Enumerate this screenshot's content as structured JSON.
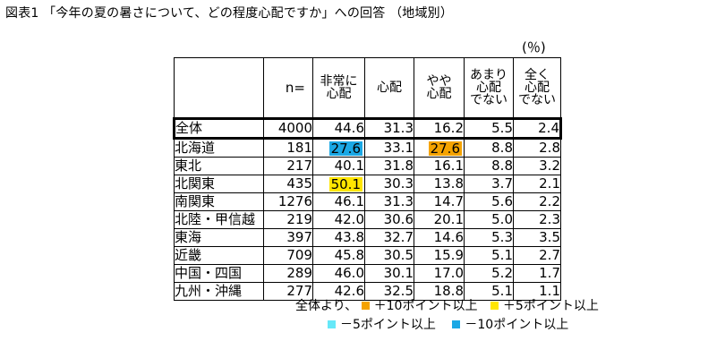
{
  "title": "図表1 「今年の夏の暑さについて、どの程度心配ですか」への回答 （地域別）",
  "unit": "(％)",
  "colors": {
    "plus10": "#F5A300",
    "plus5": "#FFE600",
    "minus5": "#66E8F8",
    "minus10": "#1BA8E5"
  },
  "chart_data": {
    "type": "table",
    "columns": [
      "",
      "n=",
      "非常に心配",
      "心配",
      "やや心配",
      "あまり心配でない",
      "全く心配でない"
    ],
    "column_headers_display": [
      "",
      "n=",
      [
        "非常に",
        "心配"
      ],
      [
        "心配"
      ],
      [
        "やや",
        "心配"
      ],
      [
        "あまり",
        "心配",
        "でない"
      ],
      [
        "全く",
        "心配",
        "でない"
      ]
    ],
    "rows": [
      {
        "region": "全体",
        "n": "4000",
        "values": [
          "44.6",
          "31.3",
          "16.2",
          "5.5",
          "2.4"
        ],
        "highlight": [
          null,
          null,
          null,
          null,
          null
        ]
      },
      {
        "region": "北海道",
        "n": "181",
        "values": [
          "27.6",
          "33.1",
          "27.6",
          "8.8",
          "2.8"
        ],
        "highlight": [
          "minus10",
          null,
          "plus10",
          null,
          null
        ]
      },
      {
        "region": "東北",
        "n": "217",
        "values": [
          "40.1",
          "31.8",
          "16.1",
          "8.8",
          "3.2"
        ],
        "highlight": [
          null,
          null,
          null,
          null,
          null
        ]
      },
      {
        "region": "北関東",
        "n": "435",
        "values": [
          "50.1",
          "30.3",
          "13.8",
          "3.7",
          "2.1"
        ],
        "highlight": [
          "plus5",
          null,
          null,
          null,
          null
        ]
      },
      {
        "region": "南関東",
        "n": "1276",
        "values": [
          "46.1",
          "31.3",
          "14.7",
          "5.6",
          "2.2"
        ],
        "highlight": [
          null,
          null,
          null,
          null,
          null
        ]
      },
      {
        "region": "北陸・甲信越",
        "n": "219",
        "values": [
          "42.0",
          "30.6",
          "20.1",
          "5.0",
          "2.3"
        ],
        "highlight": [
          null,
          null,
          null,
          null,
          null
        ]
      },
      {
        "region": "東海",
        "n": "397",
        "values": [
          "43.8",
          "32.7",
          "14.6",
          "5.3",
          "3.5"
        ],
        "highlight": [
          null,
          null,
          null,
          null,
          null
        ]
      },
      {
        "region": "近畿",
        "n": "709",
        "values": [
          "45.8",
          "30.5",
          "15.9",
          "5.1",
          "2.7"
        ],
        "highlight": [
          null,
          null,
          null,
          null,
          null
        ]
      },
      {
        "region": "中国・四国",
        "n": "289",
        "values": [
          "46.0",
          "30.1",
          "17.0",
          "5.2",
          "1.7"
        ],
        "highlight": [
          null,
          null,
          null,
          null,
          null
        ]
      },
      {
        "region": "九州・沖縄",
        "n": "277",
        "values": [
          "42.6",
          "32.5",
          "18.8",
          "5.1",
          "1.1"
        ],
        "highlight": [
          null,
          null,
          null,
          null,
          null
        ]
      }
    ]
  },
  "legend": {
    "prefix": "全体より、",
    "items": [
      {
        "key": "plus10",
        "label": "＋10ポイント以上"
      },
      {
        "key": "plus5",
        "label": "＋5ポイント以上"
      },
      {
        "key": "minus5",
        "label": "－5ポイント以上"
      },
      {
        "key": "minus10",
        "label": "－10ポイント以上"
      }
    ]
  }
}
